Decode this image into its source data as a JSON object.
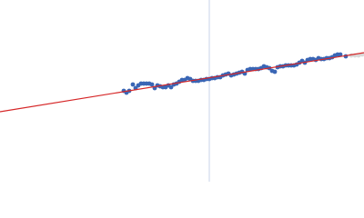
{
  "chart_data": {
    "type": "scatter",
    "xlim": [
      0,
      400
    ],
    "ylim": [
      200,
      0
    ],
    "vline": {
      "x": 230,
      "color": "#c9d3ea"
    },
    "fit": {
      "x": [
        0,
        400
      ],
      "values": [
        77,
        142
      ],
      "color": "#d62728"
    },
    "series": [
      {
        "color": "#3a66b5",
        "x": [
          136,
          139,
          142,
          146,
          149,
          152,
          155,
          158,
          161,
          164,
          167,
          170,
          173,
          176,
          179,
          182,
          185,
          188,
          191,
          194,
          197,
          200,
          203,
          206,
          209,
          212,
          215,
          218,
          221,
          224,
          227,
          230,
          233,
          236,
          239,
          242,
          245,
          248,
          251,
          254,
          257,
          260,
          263,
          266,
          269,
          272,
          275,
          278,
          281,
          284,
          287,
          290,
          293,
          296,
          299,
          302,
          305,
          308,
          311,
          314,
          317,
          320,
          323,
          326,
          329,
          332,
          335,
          338,
          341,
          344,
          347,
          350,
          353,
          356,
          359,
          362,
          365,
          368,
          371,
          374,
          380
        ],
        "values": [
          100,
          98,
          100,
          107,
          103,
          106,
          108,
          108,
          108,
          108,
          107,
          103,
          106,
          105,
          104,
          104,
          106,
          104,
          107,
          108,
          110,
          112,
          112,
          114,
          113,
          111,
          111,
          111,
          112,
          112,
          113,
          113,
          114,
          114,
          115,
          115,
          117,
          118,
          119,
          117,
          118,
          119,
          120,
          121,
          119,
          123,
          124,
          124,
          124,
          124,
          125,
          127,
          126,
          125,
          122,
          121,
          126,
          127,
          127,
          128,
          128,
          128,
          128,
          129,
          131,
          133,
          131,
          134,
          135,
          135,
          134,
          136,
          135,
          135,
          136,
          136,
          137,
          139,
          140,
          140,
          138
        ]
      },
      {
        "color": "#d8d8d8",
        "x": [
          386,
          390,
          394,
          398
        ],
        "values": [
          139,
          139,
          139,
          140
        ]
      }
    ]
  }
}
